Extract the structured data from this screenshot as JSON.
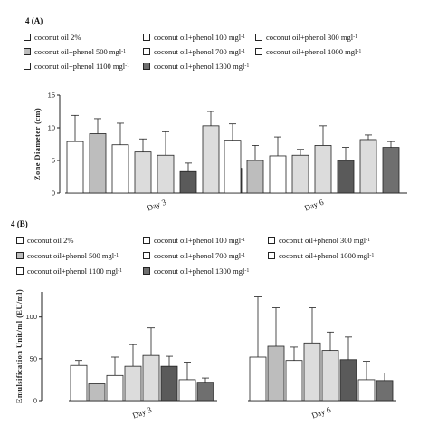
{
  "colors": {
    "white": "#ffffff",
    "light": "#dcdcdc",
    "mid": "#bdbdbd",
    "dark": "#6f6f6f",
    "darker": "#5a5a5a",
    "stroke": "#222222"
  },
  "legend_items": [
    {
      "label": "coconut oil 2%",
      "sup": "",
      "color": "#ffffff"
    },
    {
      "label": "coconut oil+phenol 100 mgl",
      "sup": "-1",
      "color": "#ffffff"
    },
    {
      "label": "coconut oil+phenol 300 mgl",
      "sup": "-1",
      "color": "#ffffff"
    },
    {
      "label": "coconut oil+phenol 500 mgl",
      "sup": "-1",
      "color": "#bdbdbd"
    },
    {
      "label": "coconut oil+phenol 700 mgl",
      "sup": "-1",
      "color": "#ffffff"
    },
    {
      "label": "coconut oil+phenol 1000 mgl",
      "sup": "-1",
      "color": "#ffffff"
    },
    {
      "label": "coconut oil+phenol 1100 mgl",
      "sup": "-1",
      "color": "#ffffff"
    },
    {
      "label": "coconut oil+phenol 1300 mgl",
      "sup": "-1",
      "color": "#6f6f6f"
    }
  ],
  "chart_data": [
    {
      "panel": "4 (A)",
      "type": "bar",
      "ylabel": "Zone Diameter (cm)",
      "ylim": [
        0,
        15
      ],
      "yticks": [
        0,
        5,
        10,
        15
      ],
      "categories": [
        "Day 3",
        "Day 6"
      ],
      "series": [
        {
          "fill": "#ffffff",
          "values": [
            7.9,
            8.1
          ],
          "errors": [
            4.0,
            2.5
          ]
        },
        {
          "fill": "#bdbdbd",
          "values": [
            9.1,
            5.0
          ],
          "errors": [
            2.3,
            2.3
          ]
        },
        {
          "fill": "#ffffff",
          "values": [
            7.4,
            5.7
          ],
          "errors": [
            3.3,
            2.9
          ]
        },
        {
          "fill": "#dcdcdc",
          "values": [
            6.3,
            5.8
          ],
          "errors": [
            2.0,
            0.9
          ]
        },
        {
          "fill": "#dcdcdc",
          "values": [
            5.8,
            7.3
          ],
          "errors": [
            3.6,
            3.0
          ]
        },
        {
          "fill": "#5a5a5a",
          "values": [
            3.3,
            5.0
          ],
          "errors": [
            1.3,
            2.0
          ]
        },
        {
          "fill": "#dcdcdc",
          "values": [
            10.3,
            8.2
          ],
          "errors": [
            2.2,
            0.7
          ]
        },
        {
          "fill": "#6f6f6f",
          "values": [
            3.8,
            7.0
          ],
          "errors": [
            1.9,
            0.9
          ]
        }
      ]
    },
    {
      "panel": "4 (B)",
      "type": "bar",
      "ylabel": "Emulsification Unit/ml (EU/ml)",
      "ylim": [
        0,
        130
      ],
      "yticks": [
        0,
        50,
        100
      ],
      "categories": [
        "Day 3",
        "Day 6"
      ],
      "series": [
        {
          "fill": "#ffffff",
          "values": [
            42,
            52
          ],
          "errors": [
            6,
            72
          ]
        },
        {
          "fill": "#bdbdbd",
          "values": [
            20,
            65
          ],
          "errors": [
            0,
            46
          ]
        },
        {
          "fill": "#ffffff",
          "values": [
            30,
            48
          ],
          "errors": [
            22,
            16
          ]
        },
        {
          "fill": "#dcdcdc",
          "values": [
            41,
            69
          ],
          "errors": [
            26,
            42
          ]
        },
        {
          "fill": "#dcdcdc",
          "values": [
            54,
            60
          ],
          "errors": [
            33,
            22
          ]
        },
        {
          "fill": "#5a5a5a",
          "values": [
            41,
            49
          ],
          "errors": [
            12,
            27
          ]
        },
        {
          "fill": "#ffffff",
          "values": [
            25,
            25
          ],
          "errors": [
            21,
            22
          ]
        },
        {
          "fill": "#6f6f6f",
          "values": [
            22,
            24
          ],
          "errors": [
            5,
            9
          ]
        }
      ]
    }
  ]
}
